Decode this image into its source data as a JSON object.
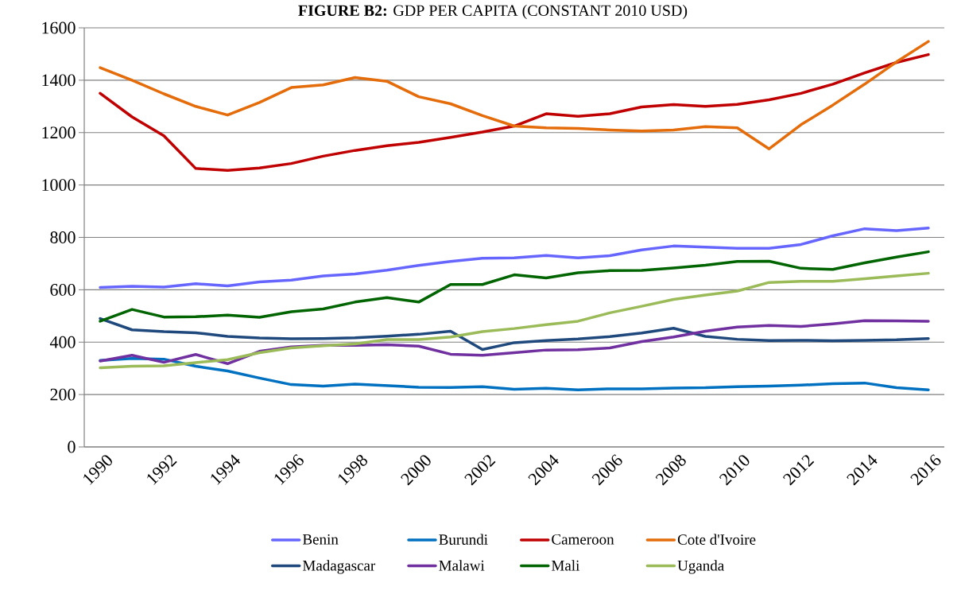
{
  "chart_data": {
    "type": "line",
    "title": "**FIGURE B2:** GDP PER CAPITA (CONSTANT 2010 USD)",
    "categories": [
      "1990",
      null,
      "1992",
      null,
      "1994",
      null,
      "1996",
      null,
      "1998",
      null,
      "2000",
      null,
      "2002",
      null,
      "2004",
      null,
      "2006",
      null,
      "2008",
      null,
      "2010",
      null,
      "2012",
      null,
      "2014",
      null,
      "2016"
    ],
    "ylim": [
      0,
      1600
    ],
    "yticks": [
      0,
      200,
      400,
      600,
      800,
      1000,
      1200,
      1400,
      1600
    ],
    "grid": "y",
    "legend": "bottom",
    "series": [
      {
        "name": "Benin",
        "color": "#6666ff",
        "values": [
          609,
          613,
          610,
          623,
          615,
          630,
          637,
          653,
          660,
          675,
          693,
          708,
          720,
          722,
          731,
          722,
          730,
          752,
          767,
          763,
          758,
          758,
          773,
          806,
          833,
          826,
          836
        ]
      },
      {
        "name": "Burundi",
        "color": "#0070c0",
        "values": [
          330,
          338,
          335,
          308,
          290,
          263,
          238,
          232,
          240,
          234,
          228,
          227,
          230,
          220,
          224,
          218,
          222,
          222,
          225,
          226,
          230,
          232,
          236,
          241,
          244,
          226,
          218
        ]
      },
      {
        "name": "Cameroon",
        "color": "#c00000",
        "values": [
          1350,
          1260,
          1188,
          1063,
          1056,
          1065,
          1082,
          1110,
          1132,
          1150,
          1163,
          1182,
          1202,
          1225,
          1272,
          1262,
          1272,
          1298,
          1307,
          1300,
          1308,
          1325,
          1350,
          1385,
          1428,
          1468,
          1498
        ]
      },
      {
        "name": "Cote d'Ivoire",
        "color": "#e46c0a",
        "values": [
          1448,
          1400,
          1348,
          1300,
          1267,
          1315,
          1372,
          1382,
          1410,
          1396,
          1337,
          1310,
          1265,
          1225,
          1218,
          1216,
          1210,
          1206,
          1210,
          1223,
          1218,
          1138,
          1230,
          1305,
          1385,
          1470,
          1548
        ]
      },
      {
        "name": "Madagascar",
        "color": "#1f497d",
        "values": [
          490,
          447,
          440,
          436,
          422,
          416,
          413,
          414,
          417,
          423,
          430,
          442,
          372,
          398,
          406,
          412,
          421,
          435,
          453,
          422,
          411,
          406,
          407,
          405,
          407,
          409,
          414
        ]
      },
      {
        "name": "Malawi",
        "color": "#7030a0",
        "values": [
          328,
          350,
          323,
          353,
          318,
          365,
          382,
          388,
          388,
          390,
          385,
          354,
          350,
          360,
          370,
          371,
          378,
          402,
          420,
          442,
          458,
          464,
          460,
          470,
          482,
          481,
          480
        ]
      },
      {
        "name": "Mali",
        "color": "#006400",
        "values": [
          480,
          525,
          496,
          497,
          503,
          495,
          516,
          527,
          553,
          570,
          553,
          620,
          620,
          657,
          645,
          665,
          673,
          674,
          683,
          694,
          708,
          709,
          682,
          678,
          703,
          725,
          745
        ]
      },
      {
        "name": "Uganda",
        "color": "#9bbb59",
        "values": [
          302,
          308,
          310,
          322,
          333,
          360,
          378,
          386,
          393,
          410,
          410,
          420,
          440,
          452,
          467,
          480,
          512,
          537,
          563,
          580,
          595,
          628,
          632,
          632,
          642,
          653,
          663
        ]
      }
    ]
  }
}
